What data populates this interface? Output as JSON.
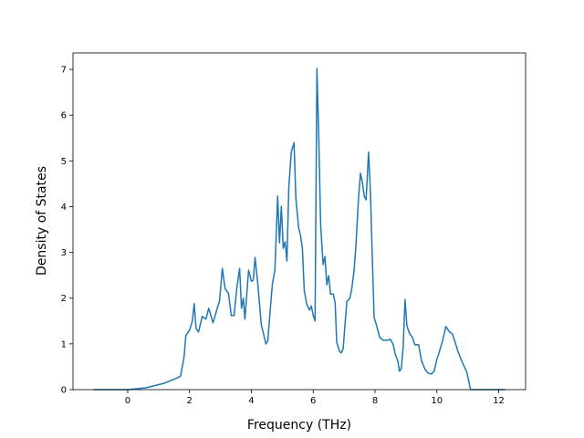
{
  "chart_data": {
    "type": "line",
    "x_label": "Frequency (THz)",
    "y_label": "Density of States",
    "xlim": [
      -1.77,
      12.87
    ],
    "ylim": [
      0,
      7.36
    ],
    "xticks": [
      0,
      2,
      4,
      6,
      8,
      10,
      12
    ],
    "yticks": [
      0,
      1,
      2,
      3,
      4,
      5,
      6,
      7
    ],
    "x": [
      -1.12,
      0,
      0.59,
      1.18,
      1.62,
      1.71,
      1.82,
      1.88,
      2.0,
      2.09,
      2.15,
      2.21,
      2.29,
      2.41,
      2.53,
      2.62,
      2.76,
      2.88,
      2.97,
      3.06,
      3.15,
      3.26,
      3.35,
      3.44,
      3.53,
      3.62,
      3.68,
      3.74,
      3.79,
      3.91,
      4.0,
      4.06,
      4.12,
      4.21,
      4.32,
      4.47,
      4.53,
      4.62,
      4.68,
      4.76,
      4.85,
      4.91,
      4.97,
      5.03,
      5.09,
      5.15,
      5.21,
      5.29,
      5.38,
      5.44,
      5.53,
      5.59,
      5.65,
      5.71,
      5.79,
      5.88,
      5.94,
      6.0,
      6.06,
      6.12,
      6.18,
      6.24,
      6.32,
      6.38,
      6.44,
      6.5,
      6.56,
      6.65,
      6.71,
      6.76,
      6.85,
      6.91,
      6.97,
      7.03,
      7.09,
      7.18,
      7.24,
      7.32,
      7.38,
      7.47,
      7.53,
      7.59,
      7.65,
      7.71,
      7.79,
      7.85,
      7.91,
      7.97,
      8.06,
      8.15,
      8.26,
      8.38,
      8.5,
      8.59,
      8.65,
      8.74,
      8.79,
      8.85,
      8.91,
      8.97,
      9.03,
      9.12,
      9.21,
      9.29,
      9.41,
      9.5,
      9.62,
      9.71,
      9.82,
      9.91,
      10.0,
      10.06,
      10.18,
      10.29,
      10.41,
      10.5,
      10.59,
      10.68,
      10.82,
      10.97,
      11.09,
      11.47,
      12.21
    ],
    "series": [
      {
        "color": "#1f77b4",
        "values": [
          0,
          0,
          0.04,
          0.14,
          0.26,
          0.3,
          0.7,
          1.18,
          1.3,
          1.5,
          1.88,
          1.34,
          1.26,
          1.6,
          1.54,
          1.78,
          1.46,
          1.74,
          1.94,
          2.65,
          2.21,
          2.1,
          1.62,
          1.62,
          2.23,
          2.65,
          1.78,
          2.0,
          1.54,
          2.61,
          2.37,
          2.39,
          2.89,
          2.29,
          1.42,
          1.0,
          1.06,
          1.83,
          2.31,
          2.61,
          4.23,
          3.21,
          4.01,
          3.09,
          3.23,
          2.81,
          4.41,
          5.19,
          5.4,
          4.17,
          3.53,
          3.37,
          3.09,
          2.17,
          1.87,
          1.74,
          1.83,
          1.62,
          1.5,
          7.02,
          5.52,
          3.61,
          2.73,
          2.91,
          2.29,
          2.49,
          2.09,
          2.09,
          1.89,
          1.04,
          0.84,
          0.8,
          0.9,
          1.44,
          1.93,
          1.99,
          2.17,
          2.59,
          3.13,
          4.23,
          4.73,
          4.53,
          4.23,
          4.15,
          5.19,
          4.33,
          2.93,
          1.58,
          1.38,
          1.14,
          1.08,
          1.08,
          1.1,
          0.98,
          0.78,
          0.62,
          0.4,
          0.46,
          0.94,
          1.97,
          1.4,
          1.22,
          1.14,
          0.98,
          0.98,
          0.64,
          0.44,
          0.36,
          0.34,
          0.4,
          0.66,
          0.78,
          1.06,
          1.38,
          1.26,
          1.22,
          1.04,
          0.84,
          0.6,
          0.38,
          0,
          0,
          0
        ]
      }
    ]
  }
}
